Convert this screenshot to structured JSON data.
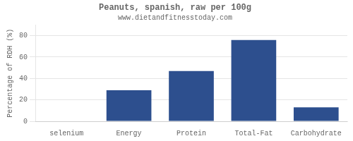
{
  "chart_data": {
    "type": "bar",
    "title": "Peanuts, spanish, raw per 100g",
    "subtitle": "www.dietandfitnesstoday.com",
    "categories": [
      "selenium",
      "Energy",
      "Protein",
      "Total-Fat",
      "Carbohydrate"
    ],
    "values": [
      0,
      29,
      47,
      76,
      13
    ],
    "color": "#2d4f8e",
    "ylabel": "Percentage of RDH (%)",
    "ylim": [
      0,
      90
    ],
    "yticks": [
      0,
      20,
      40,
      60,
      80
    ],
    "grid": true
  }
}
